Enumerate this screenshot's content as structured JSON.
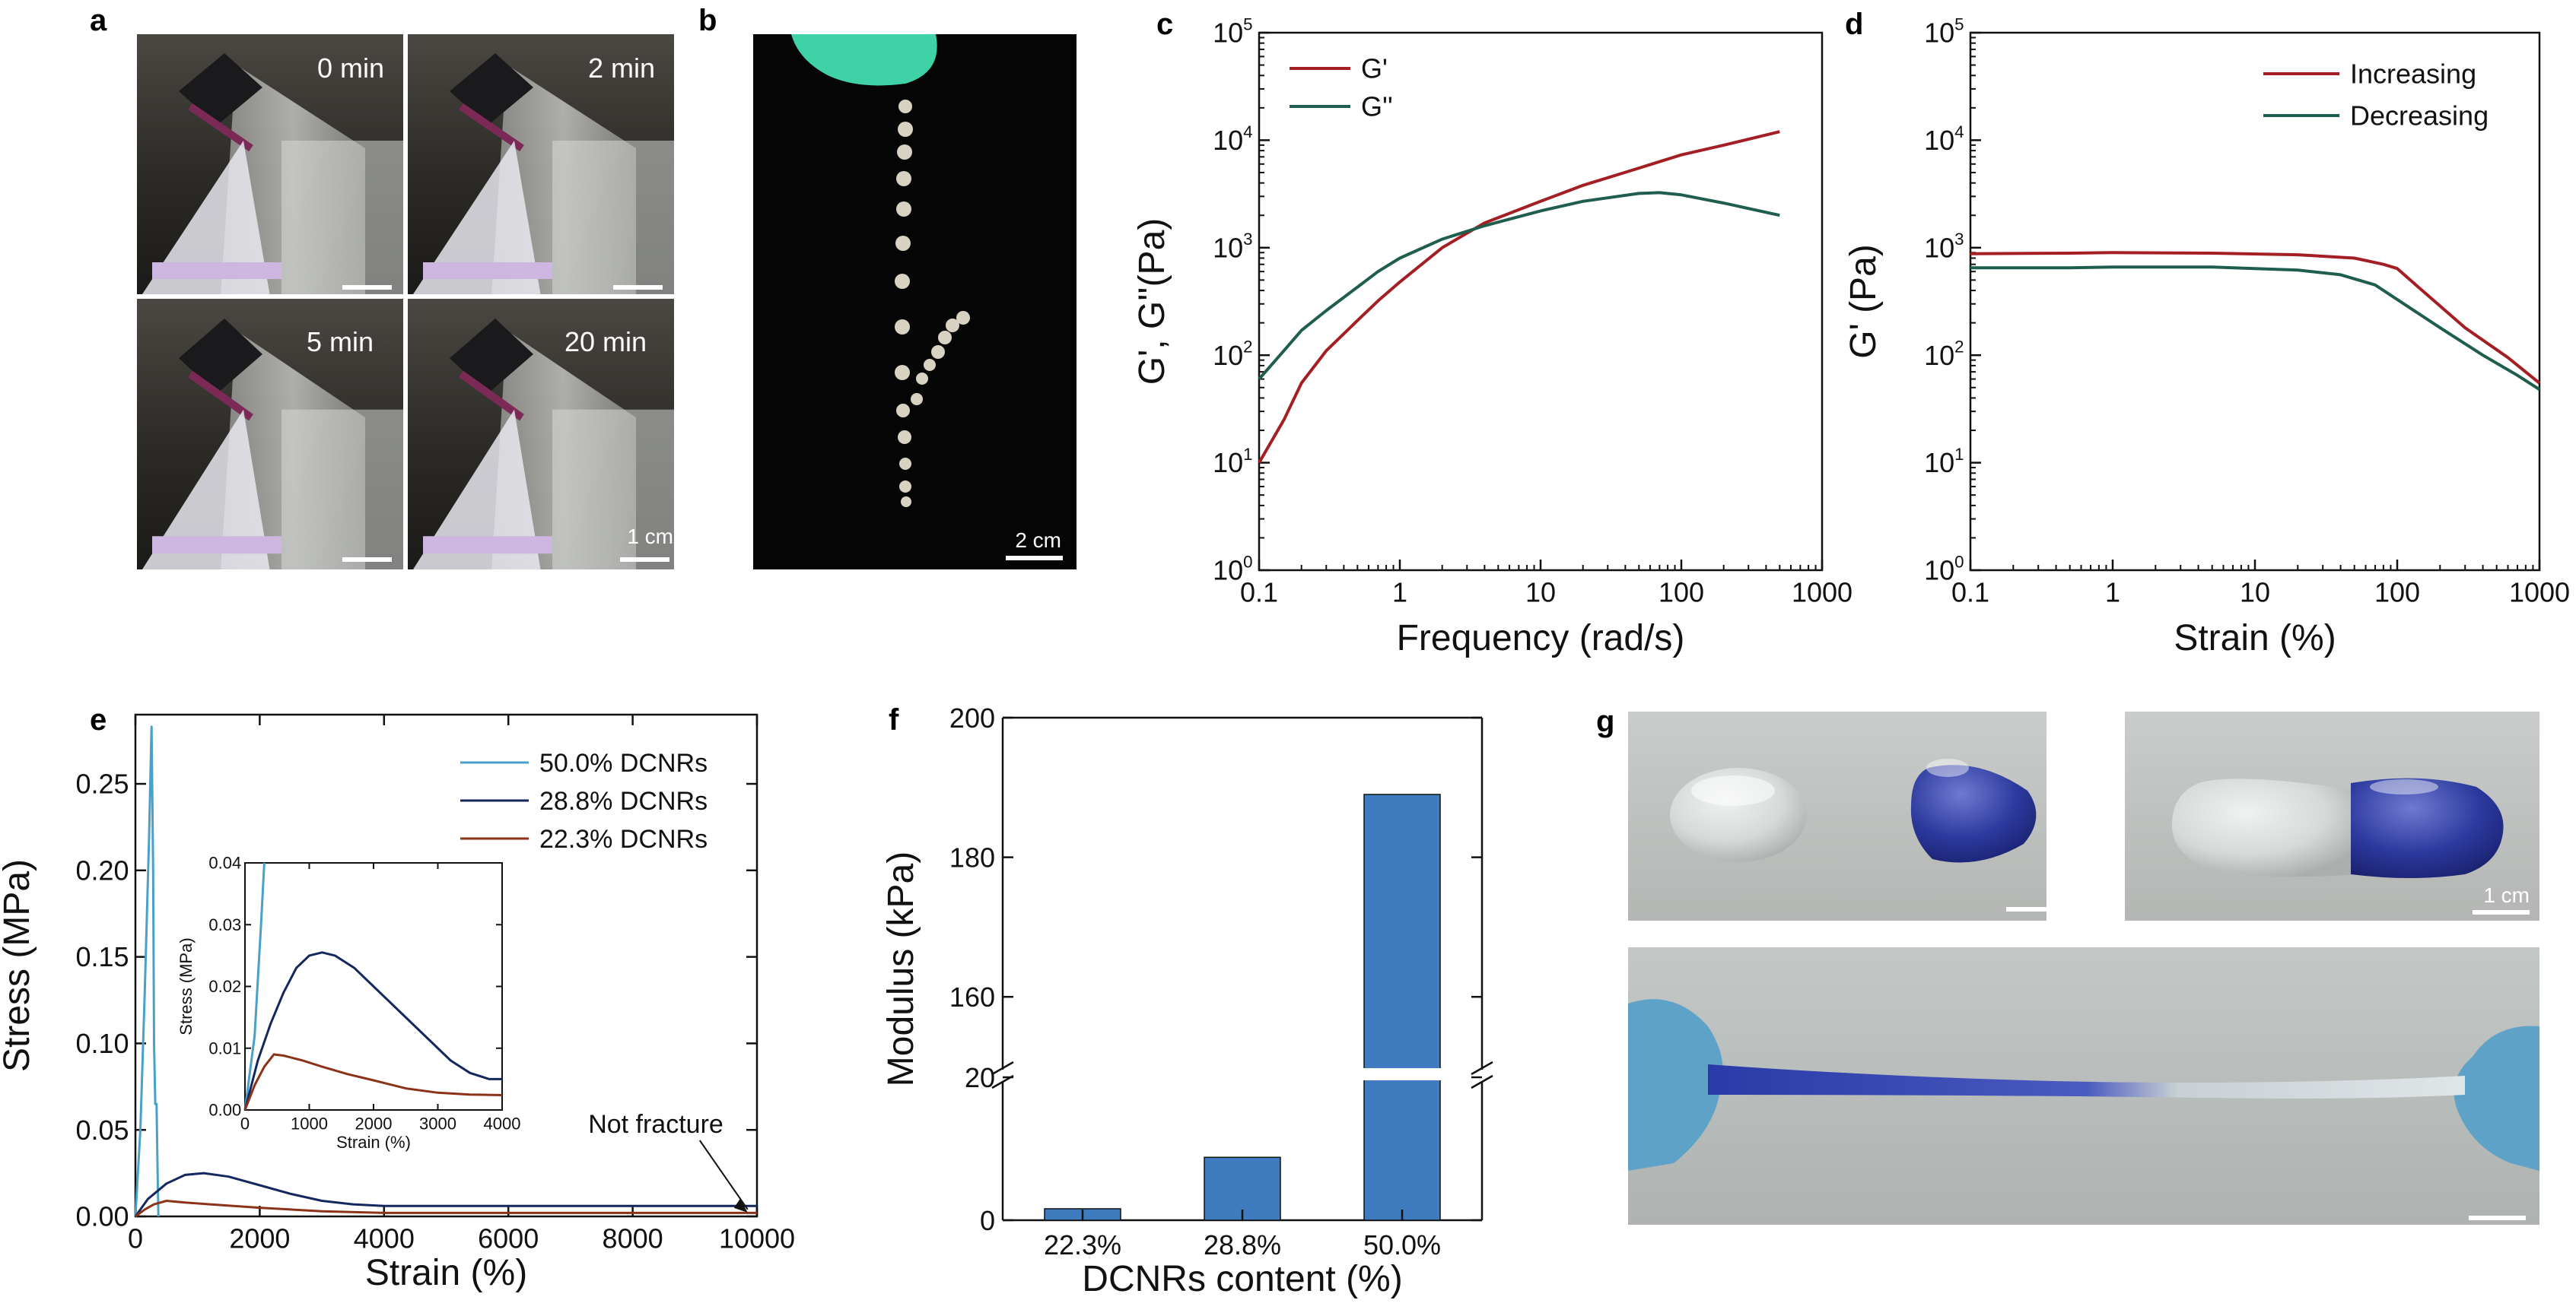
{
  "panels": {
    "a": {
      "letter": "a",
      "times": [
        "0 min",
        "2 min",
        "5 min",
        "20 min"
      ],
      "scale_label": "1 cm"
    },
    "b": {
      "letter": "b",
      "scale_label": "2 cm"
    },
    "g": {
      "letter": "g",
      "scale_label": "1 cm"
    }
  },
  "chart_data": [
    {
      "id": "c",
      "letter": "c",
      "type": "line",
      "xlabel": "Frequency (rad/s)",
      "ylabel": "G', G''(Pa)",
      "xscale": "log",
      "yscale": "log",
      "xlim": [
        0.1,
        1000
      ],
      "ylim": [
        1,
        100000
      ],
      "xticks": [
        {
          "value": 0.1,
          "label": "0.1"
        },
        {
          "value": 1,
          "label": "1"
        },
        {
          "value": 10,
          "label": "10"
        },
        {
          "value": 100,
          "label": "100"
        },
        {
          "value": 1000,
          "label": "1000"
        }
      ],
      "yticks": [
        {
          "value": 1,
          "label": "10",
          "exp": "0"
        },
        {
          "value": 10,
          "label": "10",
          "exp": "1"
        },
        {
          "value": 100,
          "label": "10",
          "exp": "2"
        },
        {
          "value": 1000,
          "label": "10",
          "exp": "3"
        },
        {
          "value": 10000,
          "label": "10",
          "exp": "4"
        },
        {
          "value": 100000,
          "label": "10",
          "exp": "5"
        }
      ],
      "legend_position": "top-left",
      "series": [
        {
          "name": "G'",
          "color": "#a31f24",
          "points": [
            [
              0.1,
              10
            ],
            [
              0.15,
              25
            ],
            [
              0.2,
              55
            ],
            [
              0.3,
              110
            ],
            [
              0.5,
              210
            ],
            [
              0.7,
              320
            ],
            [
              1,
              480
            ],
            [
              2,
              1000
            ],
            [
              4,
              1700
            ],
            [
              10,
              2700
            ],
            [
              20,
              3800
            ],
            [
              50,
              5500
            ],
            [
              100,
              7300
            ],
            [
              200,
              9000
            ],
            [
              500,
              12000
            ]
          ]
        },
        {
          "name": "G''",
          "color": "#1f5e4e",
          "points": [
            [
              0.1,
              60
            ],
            [
              0.15,
              110
            ],
            [
              0.2,
              170
            ],
            [
              0.3,
              260
            ],
            [
              0.5,
              430
            ],
            [
              0.7,
              600
            ],
            [
              1,
              800
            ],
            [
              2,
              1200
            ],
            [
              4,
              1600
            ],
            [
              10,
              2200
            ],
            [
              20,
              2700
            ],
            [
              50,
              3200
            ],
            [
              70,
              3250
            ],
            [
              100,
              3100
            ],
            [
              200,
              2600
            ],
            [
              500,
              2000
            ]
          ]
        }
      ]
    },
    {
      "id": "d",
      "letter": "d",
      "type": "line",
      "xlabel": "Strain (%)",
      "ylabel": "G' (Pa)",
      "xscale": "log",
      "yscale": "log",
      "xlim": [
        0.1,
        1000
      ],
      "ylim": [
        1,
        100000
      ],
      "xticks": [
        {
          "value": 0.1,
          "label": "0.1"
        },
        {
          "value": 1,
          "label": "1"
        },
        {
          "value": 10,
          "label": "10"
        },
        {
          "value": 100,
          "label": "100"
        },
        {
          "value": 1000,
          "label": "1000"
        }
      ],
      "yticks": [
        {
          "value": 1,
          "label": "10",
          "exp": "0"
        },
        {
          "value": 10,
          "label": "10",
          "exp": "1"
        },
        {
          "value": 100,
          "label": "10",
          "exp": "2"
        },
        {
          "value": 1000,
          "label": "10",
          "exp": "3"
        },
        {
          "value": 10000,
          "label": "10",
          "exp": "4"
        },
        {
          "value": 100000,
          "label": "10",
          "exp": "5"
        }
      ],
      "legend_position": "top-right",
      "series": [
        {
          "name": "Increasing",
          "color": "#a31f24",
          "points": [
            [
              0.1,
              880
            ],
            [
              0.5,
              890
            ],
            [
              1,
              900
            ],
            [
              5,
              890
            ],
            [
              20,
              860
            ],
            [
              50,
              800
            ],
            [
              80,
              700
            ],
            [
              100,
              640
            ],
            [
              150,
              400
            ],
            [
              300,
              180
            ],
            [
              600,
              95
            ],
            [
              1000,
              55
            ]
          ]
        },
        {
          "name": "Decreasing",
          "color": "#1f5e4e",
          "points": [
            [
              0.1,
              650
            ],
            [
              0.5,
              650
            ],
            [
              1,
              660
            ],
            [
              5,
              660
            ],
            [
              20,
              620
            ],
            [
              40,
              560
            ],
            [
              70,
              450
            ],
            [
              100,
              330
            ],
            [
              200,
              180
            ],
            [
              400,
              100
            ],
            [
              700,
              65
            ],
            [
              1000,
              48
            ]
          ]
        }
      ]
    },
    {
      "id": "e",
      "letter": "e",
      "type": "line",
      "xlabel": "Strain (%)",
      "ylabel": "Stress (MPa)",
      "xlim": [
        0,
        10000
      ],
      "ylim": [
        0,
        0.29
      ],
      "xticks": [
        {
          "value": 0,
          "label": "0"
        },
        {
          "value": 2000,
          "label": "2000"
        },
        {
          "value": 4000,
          "label": "4000"
        },
        {
          "value": 6000,
          "label": "6000"
        },
        {
          "value": 8000,
          "label": "8000"
        },
        {
          "value": 10000,
          "label": "10000"
        }
      ],
      "yticks": [
        {
          "value": 0,
          "label": "0.00"
        },
        {
          "value": 0.05,
          "label": "0.05"
        },
        {
          "value": 0.1,
          "label": "0.10"
        },
        {
          "value": 0.15,
          "label": "0.15"
        },
        {
          "value": 0.2,
          "label": "0.20"
        },
        {
          "value": 0.25,
          "label": "0.25"
        }
      ],
      "legend_position": "top-right",
      "annotation": "Not fracture",
      "series": [
        {
          "name": "50.0% DCNRs",
          "color": "#4aa0c8",
          "points": [
            [
              0,
              0
            ],
            [
              80,
              0.05
            ],
            [
              150,
              0.13
            ],
            [
              220,
              0.22
            ],
            [
              260,
              0.283
            ],
            [
              285,
              0.2
            ],
            [
              300,
              0.1
            ],
            [
              320,
              0.065
            ],
            [
              340,
              0.065
            ],
            [
              355,
              0.03
            ],
            [
              370,
              0.0
            ]
          ]
        },
        {
          "name": "28.8% DCNRs",
          "color": "#14275e",
          "points": [
            [
              0,
              0
            ],
            [
              200,
              0.01
            ],
            [
              500,
              0.019
            ],
            [
              800,
              0.024
            ],
            [
              1100,
              0.025
            ],
            [
              1500,
              0.023
            ],
            [
              2000,
              0.018
            ],
            [
              2500,
              0.013
            ],
            [
              3000,
              0.009
            ],
            [
              3500,
              0.007
            ],
            [
              4000,
              0.006
            ],
            [
              6000,
              0.006
            ],
            [
              8000,
              0.006
            ],
            [
              10000,
              0.006
            ]
          ]
        },
        {
          "name": "22.3% DCNRs",
          "color": "#8c3219",
          "points": [
            [
              0,
              0
            ],
            [
              150,
              0.004
            ],
            [
              300,
              0.007
            ],
            [
              500,
              0.009
            ],
            [
              800,
              0.008
            ],
            [
              1200,
              0.007
            ],
            [
              2000,
              0.005
            ],
            [
              3000,
              0.003
            ],
            [
              4000,
              0.002
            ],
            [
              6000,
              0.002
            ],
            [
              8000,
              0.002
            ],
            [
              10000,
              0.002
            ]
          ]
        }
      ]
    },
    {
      "id": "e-inset",
      "type": "line",
      "xlabel": "Strain (%)",
      "ylabel": "Stress (MPa)",
      "xlim": [
        0,
        4000
      ],
      "ylim": [
        0,
        0.04
      ],
      "xticks": [
        {
          "value": 0,
          "label": "0"
        },
        {
          "value": 1000,
          "label": "1000"
        },
        {
          "value": 2000,
          "label": "2000"
        },
        {
          "value": 3000,
          "label": "3000"
        },
        {
          "value": 4000,
          "label": "4000"
        }
      ],
      "yticks": [
        {
          "value": 0,
          "label": "0.00"
        },
        {
          "value": 0.01,
          "label": "0.01"
        },
        {
          "value": 0.02,
          "label": "0.02"
        },
        {
          "value": 0.03,
          "label": "0.03"
        },
        {
          "value": 0.04,
          "label": "0.04"
        }
      ],
      "series": [
        {
          "name": "50.0% DCNRs",
          "color": "#4aa0c8",
          "points": [
            [
              0,
              0
            ],
            [
              150,
              0.012
            ],
            [
              250,
              0.03
            ],
            [
              300,
              0.04
            ]
          ]
        },
        {
          "name": "28.8% DCNRs",
          "color": "#14275e",
          "points": [
            [
              0,
              0
            ],
            [
              200,
              0.008
            ],
            [
              400,
              0.014
            ],
            [
              600,
              0.019
            ],
            [
              800,
              0.023
            ],
            [
              1000,
              0.025
            ],
            [
              1200,
              0.0255
            ],
            [
              1400,
              0.025
            ],
            [
              1700,
              0.023
            ],
            [
              2000,
              0.02
            ],
            [
              2400,
              0.016
            ],
            [
              2800,
              0.012
            ],
            [
              3200,
              0.008
            ],
            [
              3500,
              0.006
            ],
            [
              3800,
              0.005
            ],
            [
              4000,
              0.005
            ]
          ]
        },
        {
          "name": "22.3% DCNRs",
          "color": "#8c3219",
          "points": [
            [
              0,
              0
            ],
            [
              150,
              0.004
            ],
            [
              300,
              0.007
            ],
            [
              450,
              0.009
            ],
            [
              600,
              0.0088
            ],
            [
              900,
              0.008
            ],
            [
              1200,
              0.007
            ],
            [
              1600,
              0.0058
            ],
            [
              2000,
              0.0048
            ],
            [
              2500,
              0.0035
            ],
            [
              3000,
              0.0028
            ],
            [
              3500,
              0.0025
            ],
            [
              4000,
              0.0024
            ]
          ]
        }
      ]
    },
    {
      "id": "f",
      "letter": "f",
      "type": "bar",
      "xlabel": "DCNRs content (%)",
      "ylabel": "Modulus (kPa)",
      "categories": [
        "22.3%",
        "28.8%",
        "50.0%"
      ],
      "values": [
        1.6,
        8.8,
        189
      ],
      "color": "#3f7cbf",
      "axis_break": [
        20,
        150
      ],
      "yticks": [
        {
          "value": 0,
          "label": "0"
        },
        {
          "value": 20,
          "label": "20"
        },
        {
          "value": 160,
          "label": "160"
        },
        {
          "value": 180,
          "label": "180"
        },
        {
          "value": 200,
          "label": "200"
        }
      ]
    }
  ]
}
